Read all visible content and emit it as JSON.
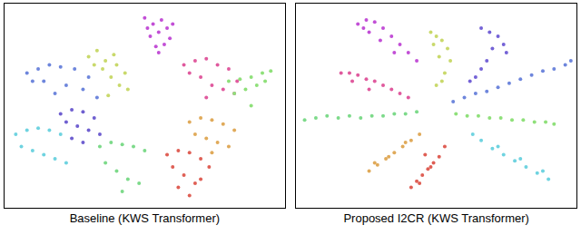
{
  "chart_data": [
    {
      "type": "scatter",
      "x_label": "Baseline (KWS Transformer)",
      "xlim": [
        0,
        100
      ],
      "ylim": [
        0,
        100
      ],
      "tick_labels": false,
      "grid": false,
      "marker": "circle",
      "series": [
        {
          "color": "#c24fd6",
          "x": [
            50,
            53,
            56,
            58,
            52,
            55,
            59,
            54,
            57,
            51,
            60,
            55
          ],
          "values": [
            93,
            90,
            92,
            88,
            84,
            86,
            83,
            79,
            80,
            88,
            90,
            76
          ]
        },
        {
          "color": "#c9d96b",
          "x": [
            30,
            33,
            36,
            40,
            43,
            35,
            38,
            41,
            32,
            44,
            37,
            39
          ],
          "values": [
            74,
            77,
            72,
            70,
            66,
            68,
            64,
            60,
            70,
            58,
            55,
            75
          ]
        },
        {
          "color": "#e05a9e",
          "x": [
            64,
            68,
            72,
            76,
            80,
            83,
            70,
            74,
            78,
            66,
            82,
            72
          ],
          "values": [
            70,
            72,
            73,
            70,
            68,
            62,
            64,
            60,
            58,
            66,
            56,
            54
          ]
        },
        {
          "color": "#8fe07a",
          "x": [
            80,
            84,
            88,
            92,
            95,
            86,
            90,
            82,
            93,
            88
          ],
          "values": [
            62,
            63,
            64,
            66,
            67,
            58,
            60,
            56,
            62,
            50
          ]
        },
        {
          "color": "#6e86dc",
          "x": [
            8,
            12,
            16,
            20,
            25,
            30,
            14,
            22,
            28,
            33,
            18,
            10
          ],
          "values": [
            66,
            68,
            70,
            69,
            68,
            64,
            62,
            60,
            58,
            54,
            56,
            62
          ]
        },
        {
          "color": "#6f5fd0",
          "x": [
            20,
            24,
            28,
            32,
            22,
            26,
            30,
            34,
            24,
            28
          ],
          "values": [
            46,
            48,
            47,
            44,
            42,
            40,
            38,
            36,
            34,
            32
          ]
        },
        {
          "color": "#6fd3e0",
          "x": [
            4,
            8,
            12,
            16,
            20,
            6,
            10,
            14,
            18,
            22
          ],
          "values": [
            36,
            38,
            39,
            38,
            36,
            30,
            28,
            26,
            24,
            22
          ]
        },
        {
          "color": "#e0aa5a",
          "x": [
            66,
            70,
            74,
            78,
            82,
            68,
            72,
            76,
            80,
            74
          ],
          "values": [
            42,
            44,
            43,
            41,
            38,
            36,
            34,
            32,
            30,
            27
          ]
        },
        {
          "color": "#7dda8a",
          "x": [
            34,
            38,
            42,
            46,
            50,
            36,
            40,
            44,
            48,
            42
          ],
          "values": [
            30,
            32,
            31,
            30,
            28,
            22,
            18,
            14,
            12,
            8
          ]
        },
        {
          "color": "#df5f55",
          "x": [
            58,
            62,
            66,
            70,
            73,
            60,
            64,
            68,
            62,
            66,
            70
          ],
          "values": [
            26,
            28,
            27,
            24,
            20,
            20,
            16,
            12,
            10,
            6,
            14
          ]
        }
      ]
    },
    {
      "type": "scatter",
      "x_label": "Proposed I2CR (KWS Transformer)",
      "xlim": [
        0,
        100
      ],
      "ylim": [
        0,
        100
      ],
      "tick_labels": false,
      "grid": false,
      "marker": "circle",
      "series": [
        {
          "color": "#c24fd6",
          "x": [
            22,
            25,
            28,
            31,
            34,
            37,
            40,
            43,
            26,
            30,
            35,
            24
          ],
          "values": [
            90,
            92,
            91,
            88,
            84,
            80,
            76,
            72,
            86,
            82,
            76,
            88
          ]
        },
        {
          "color": "#c9d96b",
          "x": [
            48,
            50,
            52,
            54,
            55,
            49,
            51,
            53,
            50,
            52
          ],
          "values": [
            86,
            84,
            82,
            78,
            72,
            80,
            74,
            66,
            60,
            62
          ]
        },
        {
          "color": "#7462d6",
          "x": [
            66,
            69,
            72,
            74,
            75,
            70,
            68,
            66,
            64,
            62
          ],
          "values": [
            88,
            86,
            84,
            80,
            76,
            78,
            72,
            68,
            64,
            62
          ]
        },
        {
          "color": "#e05a9e",
          "x": [
            16,
            19,
            22,
            25,
            28,
            31,
            34,
            37,
            40,
            20,
            26
          ],
          "values": [
            66,
            66,
            65,
            63,
            62,
            60,
            58,
            56,
            54,
            62,
            58
          ]
        },
        {
          "color": "#6e86dc",
          "x": [
            56,
            60,
            64,
            68,
            72,
            76,
            80,
            84,
            88,
            92,
            96,
            98
          ],
          "values": [
            52,
            54,
            56,
            57,
            59,
            61,
            63,
            65,
            67,
            68,
            70,
            72
          ]
        },
        {
          "color": "#7dda8a",
          "x": [
            3,
            7,
            11,
            15,
            19,
            23,
            27,
            31,
            35,
            39,
            43
          ],
          "values": [
            43,
            44,
            45,
            44,
            45,
            44,
            45,
            45,
            46,
            46,
            47
          ]
        },
        {
          "color": "#8fe07a",
          "x": [
            57,
            61,
            65,
            69,
            73,
            77,
            81,
            85,
            89,
            92
          ],
          "values": [
            46,
            45,
            45,
            44,
            44,
            43,
            43,
            42,
            42,
            41
          ]
        },
        {
          "color": "#e0aa5a",
          "x": [
            26,
            29,
            32,
            35,
            38,
            41,
            44,
            28,
            33,
            39
          ],
          "values": [
            18,
            21,
            24,
            27,
            30,
            33,
            36,
            22,
            25,
            32
          ]
        },
        {
          "color": "#df5f55",
          "x": [
            41,
            43,
            45,
            47,
            49,
            51,
            53,
            44,
            48,
            46
          ],
          "values": [
            10,
            13,
            16,
            19,
            22,
            25,
            30,
            12,
            20,
            26
          ]
        },
        {
          "color": "#6fd3e0",
          "x": [
            90,
            86,
            82,
            78,
            74,
            70,
            66,
            63,
            88,
            80,
            72
          ],
          "values": [
            14,
            17,
            20,
            23,
            26,
            29,
            33,
            36,
            18,
            24,
            30
          ]
        }
      ]
    }
  ]
}
